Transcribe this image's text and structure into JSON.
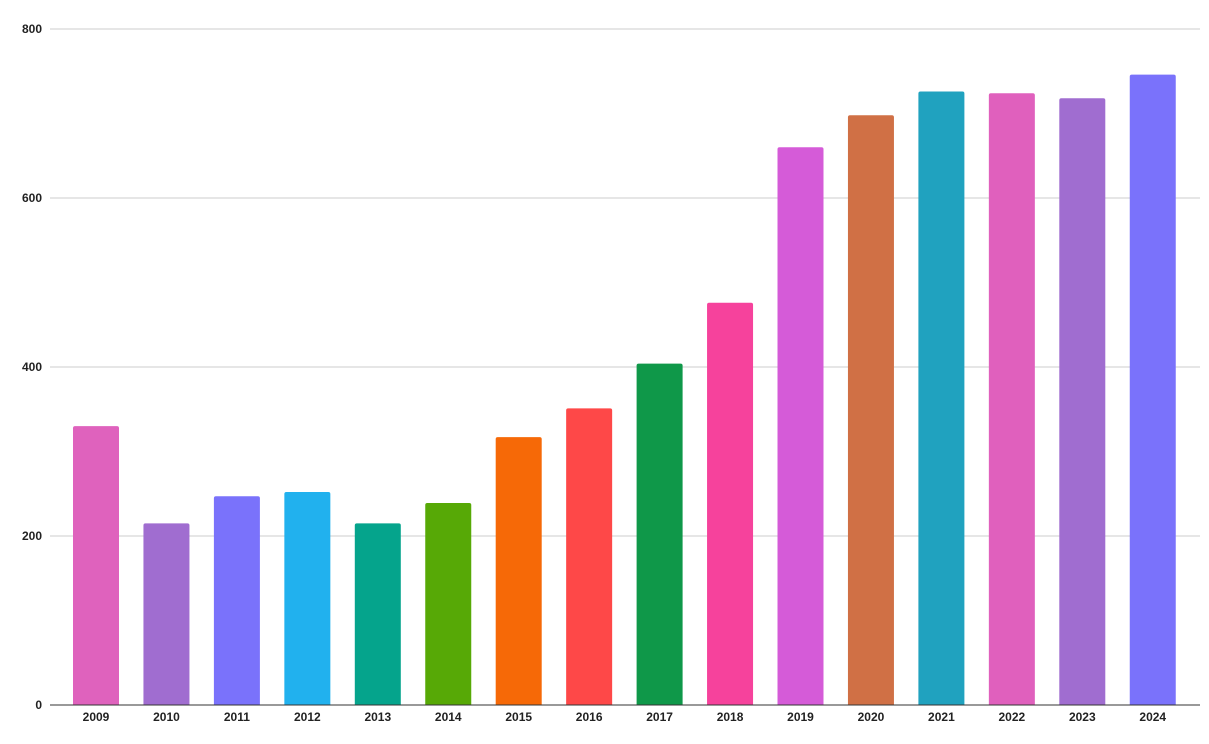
{
  "chart_data": {
    "type": "bar",
    "title": "",
    "xlabel": "",
    "ylabel": "",
    "categories": [
      "2009",
      "2010",
      "2011",
      "2012",
      "2013",
      "2014",
      "2015",
      "2016",
      "2017",
      "2018",
      "2019",
      "2020",
      "2021",
      "2022",
      "2023",
      "2024"
    ],
    "values": [
      330,
      215,
      247,
      252,
      215,
      239,
      317,
      351,
      404,
      476,
      660,
      698,
      726,
      724,
      718,
      746
    ],
    "bar_colors": [
      "#df62bd",
      "#a06dd0",
      "#7a72fb",
      "#21b1ee",
      "#05a48c",
      "#57a906",
      "#f66907",
      "#fe4848",
      "#0f9849",
      "#f6429c",
      "#d55bd8",
      "#d07045",
      "#20a2bf",
      "#e060bd",
      "#a06dd0",
      "#7a72fb"
    ],
    "ylim": [
      0,
      800
    ],
    "yticks": [
      0,
      200,
      400,
      600,
      800
    ],
    "grid": true,
    "legend": "none"
  }
}
